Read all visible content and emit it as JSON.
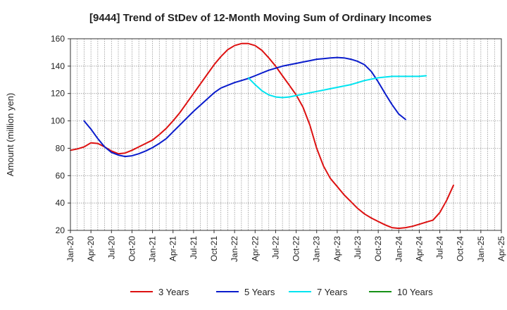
{
  "chart_data": {
    "type": "line",
    "title": "[9444]  Trend of StDev of 12-Month Moving Sum of Ordinary Incomes",
    "ylabel": "Amount (million yen)",
    "xlabel": "",
    "ylim": [
      20,
      160
    ],
    "yticks": [
      20,
      40,
      60,
      80,
      100,
      120,
      140,
      160
    ],
    "x_ticks": [
      "Jan-20",
      "Apr-20",
      "Jul-20",
      "Oct-20",
      "Jan-21",
      "Apr-21",
      "Jul-21",
      "Oct-21",
      "Jan-22",
      "Apr-22",
      "Jul-22",
      "Oct-22",
      "Jan-23",
      "Apr-23",
      "Jul-23",
      "Oct-23",
      "Jan-24",
      "Apr-24",
      "Jul-24",
      "Oct-24",
      "Jan-25",
      "Apr-25"
    ],
    "x_start_month": "Jan-20",
    "x_num_months": 63,
    "grid": true,
    "legend_position": "bottom",
    "series": [
      {
        "name": "3 Years",
        "color": "#dd1111",
        "start_index": 0,
        "values": [
          78.5,
          79.5,
          81,
          84,
          83.5,
          81,
          78,
          76,
          76.5,
          78.5,
          81,
          83.5,
          86,
          90,
          94.5,
          100,
          106,
          113,
          120,
          127,
          134,
          141,
          147,
          152,
          155,
          156.5,
          156.5,
          155,
          151.5,
          146,
          140,
          133,
          126,
          119,
          110,
          97,
          80,
          67,
          58,
          52,
          46,
          41,
          36,
          32,
          29,
          26.5,
          24,
          22,
          21.5,
          22,
          23,
          24.5,
          26,
          27.5,
          33,
          42,
          53
        ]
      },
      {
        "name": "5 Years",
        "color": "#0a1ccc",
        "start_index": 2,
        "values": [
          100,
          94,
          87,
          81,
          77,
          75,
          74,
          74.5,
          76,
          78,
          80.5,
          83.5,
          87,
          92,
          97,
          102,
          107,
          111.5,
          116,
          120.5,
          124,
          126,
          128,
          129.5,
          131,
          133,
          135,
          137,
          138.5,
          140,
          141,
          142,
          143,
          144,
          145,
          145.5,
          146,
          146.3,
          146,
          145,
          143.5,
          141,
          136,
          128.5,
          120,
          112,
          105,
          101
        ]
      },
      {
        "name": "7 Years",
        "color": "#00e4f0",
        "start_index": 26,
        "values": [
          131.5,
          126.5,
          122,
          119,
          117.5,
          117,
          117.5,
          118.5,
          119.5,
          120.5,
          121.5,
          122.5,
          123.5,
          124.5,
          125.5,
          126.5,
          128,
          129.5,
          130.5,
          131.5,
          132,
          132.5,
          132.5,
          132.5,
          132.5,
          132.5,
          133
        ]
      },
      {
        "name": "10 Years",
        "color": "#169116",
        "start_index": 0,
        "values": []
      }
    ]
  }
}
